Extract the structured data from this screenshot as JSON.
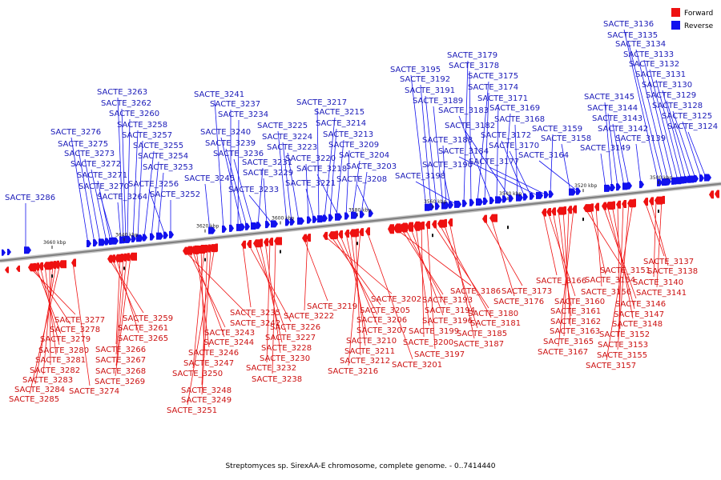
{
  "caption": "Streptomyces sp. SirexAA-E chromosome, complete genome. - 0..7414440",
  "legend": [
    {
      "label": "Forward",
      "color": "#ee1111"
    },
    {
      "label": "Reverse",
      "color": "#1111ee"
    }
  ],
  "strand_colors": {
    "forward": "#ee1111",
    "reverse": "#1111ee",
    "backbone": "#808080"
  },
  "ticks": [
    "3660 kbp",
    "3640 kbp",
    "3620 kbp",
    "3600 kbp",
    "3580 kbp",
    "3560 kbp",
    "3540 kbp",
    "3520 kbp",
    "3500 kbp"
  ],
  "reverse_genes": [
    "SACTE_3286",
    "SACTE_3276",
    "SACTE_3275",
    "SACTE_3273",
    "SACTE_3272",
    "SACTE_3271",
    "SACTE_3270",
    "SACTE_3264",
    "SACTE_3263",
    "SACTE_3262",
    "SACTE_3260",
    "SACTE_3258",
    "SACTE_3257",
    "SACTE_3255",
    "SACTE_3254",
    "SACTE_3253",
    "SACTE_3256",
    "SACTE_3252",
    "SACTE_3245",
    "SACTE_3241",
    "SACTE_3237",
    "SACTE_3234",
    "SACTE_3240",
    "SACTE_3239",
    "SACTE_3236",
    "SACTE_3231",
    "SACTE_3229",
    "SACTE_3233",
    "SACTE_3225",
    "SACTE_3224",
    "SACTE_3223",
    "SACTE_3220",
    "SACTE_3221",
    "SACTE_3217",
    "SACTE_3215",
    "SACTE_3214",
    "SACTE_3213",
    "SACTE_3218",
    "SACTE_3209",
    "SACTE_3204",
    "SACTE_3203",
    "SACTE_3208",
    "SACTE_3195",
    "SACTE_3192",
    "SACTE_3191",
    "SACTE_3189",
    "SACTE_3188",
    "SACTE_3190",
    "SACTE_3198",
    "SACTE_3179",
    "SACTE_3178",
    "SACTE_3175",
    "SACTE_3174",
    "SACTE_3183",
    "SACTE_3171",
    "SACTE_3169",
    "SACTE_3182",
    "SACTE_3168",
    "SACTE_3172",
    "SACTE_3170",
    "SACTE_3184",
    "SACTE_3177",
    "SACTE_3159",
    "SACTE_3158",
    "SACTE_3164",
    "SACTE_3136",
    "SACTE_3135",
    "SACTE_3134",
    "SACTE_3133",
    "SACTE_3132",
    "SACTE_3131",
    "SACTE_3130",
    "SACTE_3129",
    "SACTE_3128",
    "SACTE_3125",
    "SACTE_3124",
    "SACTE_3145",
    "SACTE_3144",
    "SACTE_3143",
    "SACTE_3142",
    "SACTE_3139",
    "SACTE_3149"
  ],
  "forward_genes": [
    "SACTE_3277",
    "SACTE_3278",
    "SACTE_3279",
    "SACTE_3280",
    "SACTE_3281",
    "SACTE_3282",
    "SACTE_3283",
    "SACTE_3284",
    "SACTE_3285",
    "SACTE_3274",
    "SACTE_3259",
    "SACTE_3261",
    "SACTE_3265",
    "SACTE_3266",
    "SACTE_3267",
    "SACTE_3268",
    "SACTE_3269",
    "SACTE_3242",
    "SACTE_3243",
    "SACTE_3244",
    "SACTE_3246",
    "SACTE_3247",
    "SACTE_3250",
    "SACTE_3248",
    "SACTE_3249",
    "SACTE_3251",
    "SACTE_3235",
    "SACTE_3226",
    "SACTE_3227",
    "SACTE_3228",
    "SACTE_3230",
    "SACTE_3232",
    "SACTE_3238",
    "SACTE_3219",
    "SACTE_3222",
    "SACTE_3202",
    "SACTE_3205",
    "SACTE_3206",
    "SACTE_3207",
    "SACTE_3210",
    "SACTE_3211",
    "SACTE_3212",
    "SACTE_3216",
    "SACTE_3201",
    "SACTE_3186",
    "SACTE_3193",
    "SACTE_3194",
    "SACTE_3196",
    "SACTE_3199",
    "SACTE_3200",
    "SACTE_3197",
    "SACTE_3180",
    "SACTE_3181",
    "SACTE_3185",
    "SACTE_3187",
    "SACTE_3173",
    "SACTE_3176",
    "SACTE_3166",
    "SACTE_3160",
    "SACTE_3161",
    "SACTE_3162",
    "SACTE_3163",
    "SACTE_3165",
    "SACTE_3167",
    "SACTE_3151",
    "SACTE_3154",
    "SACTE_3156",
    "SACTE_3146",
    "SACTE_3147",
    "SACTE_3148",
    "SACTE_3152",
    "SACTE_3153",
    "SACTE_3155",
    "SACTE_3157",
    "SACTE_3137",
    "SACTE_3138",
    "SACTE_3140",
    "SACTE_3141"
  ]
}
